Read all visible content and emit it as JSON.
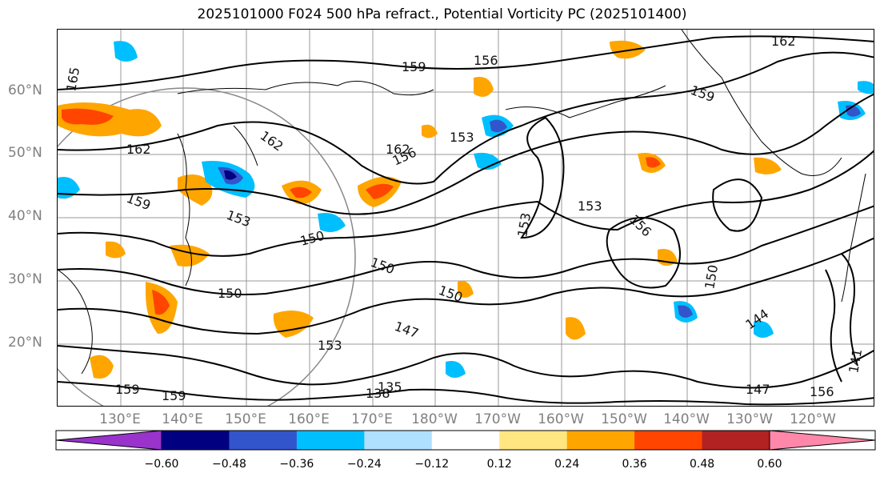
{
  "title": "2025101000 F024 500 hPa refract., Potential Vorticity PC (2025101400)",
  "lat_labels": [
    "60°N",
    "50°N",
    "40°N",
    "30°N",
    "20°N"
  ],
  "lon_labels": [
    "130°E",
    "140°E",
    "150°E",
    "160°E",
    "170°E",
    "180°W",
    "170°W",
    "160°W",
    "150°W",
    "140°W",
    "130°W",
    "120°W"
  ],
  "colorbar": {
    "ticks": [
      "−0.60",
      "−0.48",
      "−0.36",
      "−0.24",
      "−0.12",
      "0.12",
      "0.24",
      "0.36",
      "0.48",
      "0.60"
    ],
    "colors": [
      "#9933cc",
      "#000080",
      "#3355cc",
      "#00bfff",
      "#b0e0ff",
      "#ffffff",
      "#ffe680",
      "#ffa500",
      "#ff4500",
      "#b22222",
      "#ff88aa"
    ]
  },
  "contour_labels": [
    "165",
    "162",
    "159",
    "156",
    "153",
    "150",
    "147",
    "144",
    "141",
    "138",
    "135"
  ]
}
